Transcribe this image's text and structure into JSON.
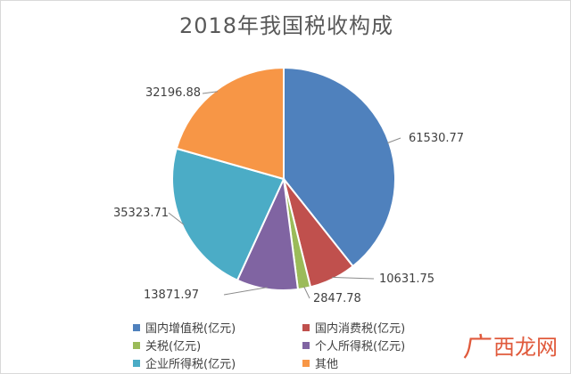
{
  "chart_data": {
    "type": "pie",
    "title": "2018年我国税收构成",
    "slices": [
      {
        "label": "国内增值税(亿元)",
        "value": 61530.77,
        "color": "#4f81bd"
      },
      {
        "label": "国内消费税(亿元)",
        "value": 10631.75,
        "color": "#c0504d"
      },
      {
        "label": "关税(亿元)",
        "value": 2847.78,
        "color": "#9bbb59"
      },
      {
        "label": "个人所得税(亿元)",
        "value": 13871.97,
        "color": "#8064a2"
      },
      {
        "label": "企业所得税(亿元)",
        "value": 35323.71,
        "color": "#4bacc6"
      },
      {
        "label": "其他",
        "value": 32196.88,
        "color": "#f79646"
      }
    ],
    "legend_position": "bottom"
  },
  "watermark": {
    "mark": "广",
    "text": "西龙网"
  }
}
